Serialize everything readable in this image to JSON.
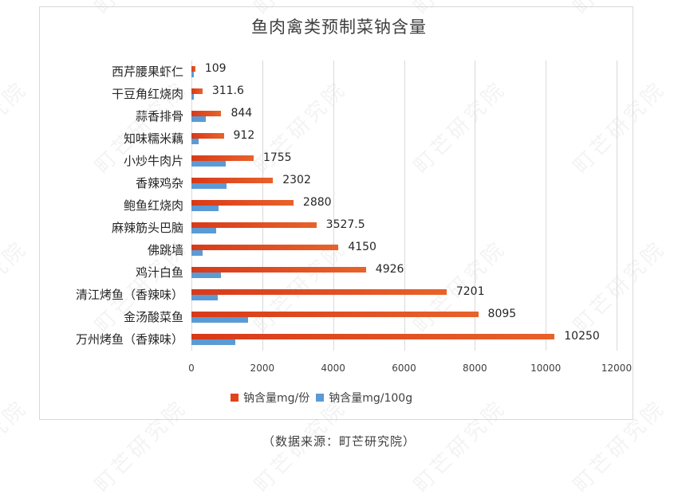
{
  "chart_data": {
    "type": "bar",
    "orientation": "horizontal",
    "title": "鱼肉禽类预制菜钠含量",
    "xlabel": "",
    "ylabel": "",
    "xlim": [
      0,
      12000
    ],
    "xticks": [
      "0",
      "2000",
      "4000",
      "6000",
      "8000",
      "10000",
      "12000"
    ],
    "grid": true,
    "legend_position": "bottom",
    "categories": [
      "西芹腰果虾仁",
      "干豆角红烧肉",
      "蒜香排骨",
      "知味糯米藕",
      "小炒牛肉片",
      "香辣鸡杂",
      "鲍鱼红烧肉",
      "麻辣筋头巴脑",
      "佛跳墙",
      "鸡汁白鱼",
      "清江烤鱼（香辣味）",
      "金汤酸菜鱼",
      "万州烤鱼（香辣味）"
    ],
    "series": [
      {
        "name": "钠含量mg/份",
        "color": "#e0441c",
        "values": [
          109,
          311.6,
          844,
          912,
          1755,
          2302,
          2880,
          3527.5,
          4150,
          4926,
          7201,
          8095,
          10250
        ],
        "labels": [
          "109",
          "311.6",
          "844",
          "912",
          "1755",
          "2302",
          "2880",
          "3527.5",
          "4150",
          "4926",
          "7201",
          "8095",
          "10250"
        ]
      },
      {
        "name": "钠含量mg/100g",
        "color": "#5b9bd5",
        "values": [
          70,
          60,
          400,
          200,
          970,
          990,
          760,
          690,
          310,
          830,
          740,
          1600,
          1240
        ]
      }
    ]
  },
  "source": "（数据来源：町芒研究院）",
  "watermark": "町芒研究院"
}
